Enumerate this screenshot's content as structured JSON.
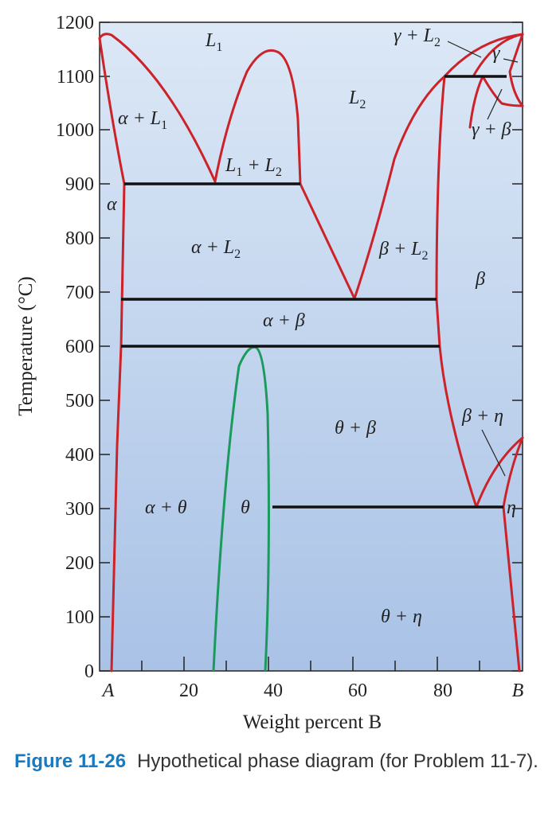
{
  "diagram": {
    "title": "",
    "y_axis": {
      "label": "Temperature (°C)",
      "ticks": [
        "0",
        "100",
        "200",
        "300",
        "400",
        "500",
        "600",
        "700",
        "800",
        "900",
        "1000",
        "1100",
        "1200"
      ]
    },
    "x_axis": {
      "label": "Weight percent B",
      "ticks": [
        "A",
        "20",
        "40",
        "60",
        "80",
        "B"
      ]
    },
    "regions": [
      {
        "id": "L1",
        "main": "L",
        "sub": "1"
      },
      {
        "id": "L2",
        "main": "L",
        "sub": "2"
      },
      {
        "id": "alpha-L1",
        "main": "α + L",
        "sub": "1"
      },
      {
        "id": "L1-L2",
        "main": "L",
        "sub": "1",
        "tail": " + L",
        "sub2": "2"
      },
      {
        "id": "alpha",
        "main": "α"
      },
      {
        "id": "alpha-L2",
        "main": "α + L",
        "sub": "2"
      },
      {
        "id": "beta-L2",
        "main": "β + L",
        "sub": "2"
      },
      {
        "id": "gamma-L2",
        "main": "γ + L",
        "sub": "2"
      },
      {
        "id": "gamma",
        "main": "γ"
      },
      {
        "id": "gamma-beta",
        "main": "γ + β"
      },
      {
        "id": "beta",
        "main": "β"
      },
      {
        "id": "alpha-beta",
        "main": "α + β"
      },
      {
        "id": "theta-beta",
        "main": "θ + β"
      },
      {
        "id": "beta-eta",
        "main": "β + η"
      },
      {
        "id": "alpha-theta",
        "main": "α + θ"
      },
      {
        "id": "theta",
        "main": "θ"
      },
      {
        "id": "eta",
        "main": "η"
      },
      {
        "id": "theta-eta",
        "main": "θ + η"
      }
    ],
    "colors": {
      "background_top": "#dce8f6",
      "background_bottom": "#a9c2e6",
      "liquidus": "#cc2229",
      "theta_phase": "#1a9a5c",
      "isotherm": "#111111"
    }
  },
  "caption": {
    "figure": "Figure 11-26",
    "text": "Hypothetical phase diagram (for Problem 11-7)."
  }
}
